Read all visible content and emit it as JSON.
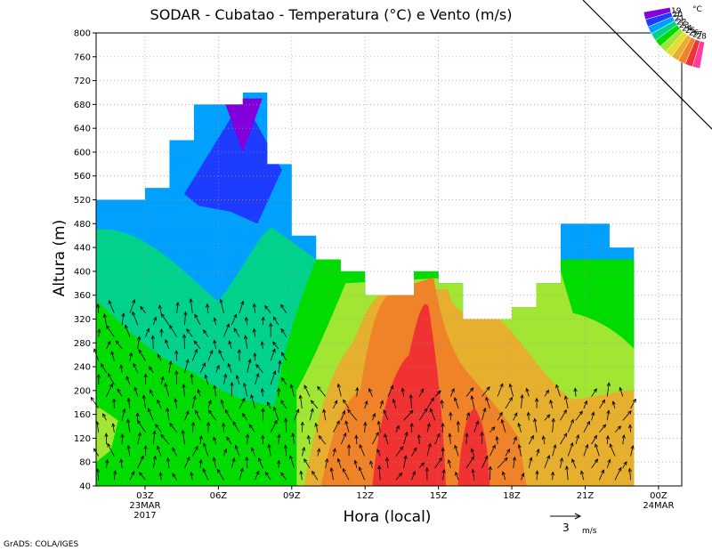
{
  "chart_data": {
    "type": "heatmap",
    "title": "SODAR - Cubatao - Temperatura (°C) e Vento (m/s)",
    "xlabel": "Hora (local)",
    "ylabel": "Altura (m)",
    "y_range": [
      40,
      800
    ],
    "y_ticks": [
      40,
      80,
      120,
      160,
      200,
      240,
      280,
      320,
      360,
      400,
      440,
      480,
      520,
      560,
      600,
      640,
      680,
      720,
      760,
      800
    ],
    "x_range_hours": [
      1,
      24
    ],
    "x_ticks": [
      {
        "hour": 3,
        "label": "03Z",
        "sub1": "23MAR",
        "sub2": "2017"
      },
      {
        "hour": 6,
        "label": "06Z"
      },
      {
        "hour": 9,
        "label": "09Z"
      },
      {
        "hour": 12,
        "label": "12Z"
      },
      {
        "hour": 15,
        "label": "15Z"
      },
      {
        "hour": 18,
        "label": "18Z"
      },
      {
        "hour": 21,
        "label": "21Z"
      },
      {
        "hour": 24,
        "label": "00Z",
        "sub1": "24MAR"
      }
    ],
    "grid": true,
    "colorbar": {
      "unit": "°C",
      "levels": [
        28,
        27,
        26,
        25,
        24,
        23,
        22,
        21,
        20,
        19
      ],
      "colors": [
        "#ff3ca0",
        "#f03232",
        "#f08228",
        "#e6af2d",
        "#e6dc32",
        "#a0e632",
        "#00dc00",
        "#00d28c",
        "#00a0ff",
        "#1e3cff",
        "#8200dc"
      ]
    },
    "data_top_m": [
      {
        "hour": 1,
        "top": 520
      },
      {
        "hour": 2,
        "top": 520
      },
      {
        "hour": 3,
        "top": 540
      },
      {
        "hour": 4,
        "top": 620
      },
      {
        "hour": 5,
        "top": 680
      },
      {
        "hour": 6,
        "top": 680
      },
      {
        "hour": 7,
        "top": 700
      },
      {
        "hour": 8,
        "top": 580
      },
      {
        "hour": 9,
        "top": 460
      },
      {
        "hour": 10,
        "top": 420
      },
      {
        "hour": 11,
        "top": 400
      },
      {
        "hour": 12,
        "top": 360
      },
      {
        "hour": 13,
        "top": 360
      },
      {
        "hour": 14,
        "top": 400
      },
      {
        "hour": 15,
        "top": 380
      },
      {
        "hour": 16,
        "top": 320
      },
      {
        "hour": 17,
        "top": 320
      },
      {
        "hour": 18,
        "top": 340
      },
      {
        "hour": 19,
        "top": 380
      },
      {
        "hour": 20,
        "top": 480
      },
      {
        "hour": 21,
        "top": 480
      },
      {
        "hour": 22,
        "top": 440
      }
    ],
    "wind_reference": {
      "value": 3,
      "unit": "m/s"
    }
  },
  "footer": {
    "credit": "GrADS: COLA/IGES"
  },
  "wind_ref_value": "3",
  "wind_ref_unit": "m/s",
  "colorbar_unit": "°C"
}
